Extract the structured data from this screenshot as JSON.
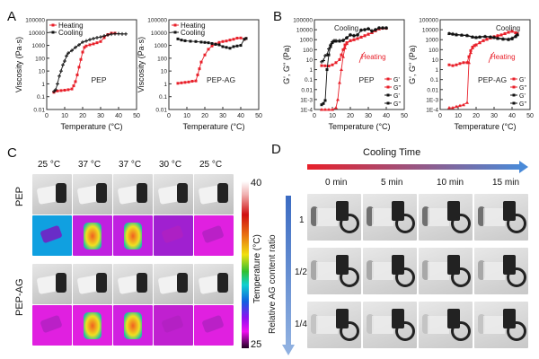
{
  "panels": {
    "A": "A",
    "B": "B",
    "C": "C",
    "D": "D"
  },
  "colors": {
    "heating": "#e8202a",
    "cooling": "#111111",
    "arrow_start": "#e8202a",
    "arrow_end": "#4a8ad8",
    "vertical_arrow": "#3b6bc2"
  },
  "chart_data": [
    {
      "id": "A1",
      "type": "line",
      "title": "",
      "annotation": "PEP",
      "xlabel": "Temperature (°C)",
      "ylabel": "Viscosity (Pa·s)",
      "xlim": [
        0,
        50
      ],
      "ylim": [
        0.01,
        100000
      ],
      "yscale": "log",
      "xticks": [
        "0",
        "10",
        "20",
        "30",
        "40",
        "50"
      ],
      "yticks": [
        "0.01",
        "0.1",
        "1",
        "10",
        "100",
        "1000",
        "10000",
        "100000"
      ],
      "legend": [
        "Heating",
        "Cooling"
      ],
      "legend_position": "top-left",
      "series": [
        {
          "name": "Heating",
          "color": "#e8202a",
          "marker": "square",
          "x": [
            4,
            6,
            8,
            10,
            12,
            14,
            15,
            16,
            17,
            18,
            19,
            20,
            21,
            22,
            24,
            26,
            28,
            30,
            32,
            34,
            36,
            38
          ],
          "y": [
            0.22,
            0.28,
            0.3,
            0.32,
            0.35,
            0.4,
            0.7,
            1.5,
            5,
            20,
            80,
            300,
            700,
            900,
            1100,
            1300,
            1600,
            2000,
            4000,
            7000,
            9000,
            9000
          ]
        },
        {
          "name": "Cooling",
          "color": "#111111",
          "marker": "cross",
          "x": [
            4,
            5,
            6,
            7,
            8,
            9,
            10,
            11,
            12,
            14,
            16,
            18,
            20,
            22,
            24,
            26,
            28,
            30,
            32,
            34,
            36,
            38,
            40,
            42,
            44
          ],
          "y": [
            0.25,
            0.35,
            1,
            4,
            10,
            30,
            60,
            150,
            250,
            400,
            700,
            1100,
            1800,
            2200,
            2800,
            3400,
            4000,
            4500,
            5500,
            6500,
            7500,
            8000,
            8000,
            7800,
            7800
          ]
        }
      ]
    },
    {
      "id": "A2",
      "type": "line",
      "title": "",
      "annotation": "PEP-AG",
      "xlabel": "Temperature (°C)",
      "ylabel": "Viscosity (Pa·s)",
      "xlim": [
        0,
        50
      ],
      "ylim": [
        0.01,
        100000
      ],
      "yscale": "log",
      "xticks": [
        "0",
        "10",
        "20",
        "30",
        "40",
        "50"
      ],
      "yticks": [
        "0.01",
        "0.1",
        "1",
        "10",
        "100",
        "1000",
        "10000",
        "100000"
      ],
      "legend": [
        "Heating",
        "Cooling"
      ],
      "legend_position": "top-left",
      "series": [
        {
          "name": "Heating",
          "color": "#e8202a",
          "marker": "square",
          "x": [
            5,
            7,
            9,
            11,
            13,
            15,
            16,
            17,
            18,
            20,
            22,
            24,
            26,
            28,
            30,
            32,
            34,
            36,
            38,
            40,
            42,
            43
          ],
          "y": [
            1.1,
            1.2,
            1.3,
            1.4,
            1.6,
            1.7,
            5,
            15,
            50,
            180,
            500,
            900,
            1300,
            1700,
            2000,
            2200,
            2600,
            3000,
            3700,
            3800,
            3000,
            3500
          ]
        },
        {
          "name": "Cooling",
          "color": "#111111",
          "marker": "square",
          "x": [
            5,
            7,
            9,
            12,
            15,
            18,
            20,
            22,
            24,
            26,
            28,
            30,
            32,
            34,
            36,
            38,
            40,
            42,
            43
          ],
          "y": [
            3200,
            2600,
            2300,
            2100,
            2000,
            1800,
            1700,
            1600,
            1400,
            1200,
            1100,
            800,
            700,
            600,
            800,
            900,
            1000,
            3000,
            3500
          ]
        }
      ]
    },
    {
      "id": "B1",
      "type": "line",
      "title": "",
      "annotation": "PEP",
      "xlabel": "Temperature (°C)",
      "ylabel": "G', G'' (Pa)",
      "xlim": [
        0,
        50
      ],
      "ylim": [
        0.0001,
        100000
      ],
      "yscale": "log",
      "xticks": [
        "0",
        "10",
        "20",
        "30",
        "40",
        "50"
      ],
      "yticks": [
        "1E-4",
        "1E-3",
        "0.01",
        "0.1",
        "1",
        "10",
        "100",
        "1000",
        "10000",
        "100000"
      ],
      "legend": [
        "G'",
        "G''",
        "G'",
        "G''"
      ],
      "legend_position": "bottom-right",
      "annotations": [
        "Cooling",
        "Heating"
      ],
      "series": [
        {
          "name": "G' heating",
          "color": "#e8202a",
          "marker": "triangle",
          "x": [
            4,
            6,
            8,
            10,
            12,
            13,
            14,
            15,
            16,
            17,
            18,
            20,
            22,
            24,
            26,
            28,
            30,
            32,
            34,
            36,
            38,
            40
          ],
          "y": [
            0.0001,
            0.0001,
            0.0001,
            0.0001,
            0.00015,
            0.001,
            0.05,
            1,
            20,
            150,
            400,
            800,
            1000,
            1300,
            1800,
            2500,
            3500,
            5000,
            8000,
            12000,
            14000,
            14000
          ]
        },
        {
          "name": "G'' heating",
          "color": "#e8202a",
          "marker": "square",
          "x": [
            4,
            6,
            8,
            10,
            12,
            14,
            15,
            16,
            17,
            18,
            20,
            22,
            24,
            26,
            28,
            30,
            32,
            34,
            36,
            38,
            40
          ],
          "y": [
            2.5,
            2.4,
            2.3,
            3,
            5,
            10,
            30,
            100,
            300,
            500,
            800,
            1000,
            1300,
            1800,
            2500,
            3500,
            5000,
            8000,
            12000,
            14000,
            14000
          ]
        },
        {
          "name": "G' cooling",
          "color": "#111111",
          "marker": "square",
          "x": [
            4,
            5,
            6,
            7,
            8,
            9,
            10,
            11,
            12,
            14,
            16,
            18,
            20,
            22,
            24,
            26,
            28,
            30,
            32,
            34,
            36,
            38,
            40
          ],
          "y": [
            0.0003,
            0.0004,
            0.0008,
            1,
            30,
            200,
            500,
            700,
            700,
            700,
            800,
            1500,
            3000,
            2500,
            3000,
            9000,
            10000,
            12000,
            7000,
            10000,
            15000,
            15000,
            15000
          ]
        },
        {
          "name": "G'' cooling",
          "color": "#111111",
          "marker": "cross",
          "x": [
            4,
            5,
            6,
            7,
            8,
            9,
            10,
            11,
            12,
            14,
            16,
            18,
            20,
            22,
            24,
            26,
            28,
            30,
            32,
            34,
            36,
            38,
            40
          ],
          "y": [
            6,
            8,
            25,
            30,
            120,
            300,
            600,
            800,
            800,
            800,
            900,
            1600,
            3000,
            2500,
            3000,
            9000,
            10000,
            13000,
            8000,
            10000,
            15000,
            15000,
            15000
          ]
        }
      ]
    },
    {
      "id": "B2",
      "type": "line",
      "title": "",
      "annotation": "PEP-AG",
      "xlabel": "Temperature (°C)",
      "ylabel": "G', G'' (Pa)",
      "xlim": [
        0,
        50
      ],
      "ylim": [
        0.0001,
        100000
      ],
      "yscale": "log",
      "xticks": [
        "0",
        "10",
        "20",
        "30",
        "40",
        "50"
      ],
      "yticks": [
        "1E-4",
        "1E-3",
        "0.01",
        "0.1",
        "1",
        "10",
        "100",
        "1000",
        "10000",
        "100000"
      ],
      "legend": [
        "G'",
        "G''",
        "G'",
        "G''"
      ],
      "legend_position": "bottom-right",
      "annotations": [
        "Cooling",
        "Heating"
      ],
      "series": [
        {
          "name": "G' heating",
          "color": "#e8202a",
          "marker": "triangle",
          "x": [
            5,
            7,
            9,
            11,
            13,
            15,
            16,
            17,
            18,
            19,
            20,
            22,
            24,
            26,
            28,
            30,
            32,
            34,
            36,
            38,
            40,
            42,
            43
          ],
          "y": [
            0.00015,
            0.00015,
            0.0002,
            0.00025,
            0.0003,
            0.0005,
            5,
            50,
            150,
            250,
            300,
            500,
            800,
            1100,
            1500,
            2000,
            2500,
            3000,
            4000,
            5500,
            7000,
            5000,
            4000
          ]
        },
        {
          "name": "G'' heating",
          "color": "#e8202a",
          "marker": "square",
          "x": [
            5,
            7,
            9,
            11,
            13,
            15,
            16,
            17,
            18,
            19,
            20,
            22,
            24,
            26,
            28,
            30,
            32,
            34,
            36,
            38,
            40,
            42,
            43
          ],
          "y": [
            3,
            2.5,
            3,
            4,
            5,
            5,
            20,
            80,
            180,
            250,
            300,
            500,
            800,
            1100,
            1500,
            2000,
            2500,
            3000,
            4000,
            5500,
            7000,
            5000,
            4000
          ]
        },
        {
          "name": "G' cooling",
          "color": "#111111",
          "marker": "triangle",
          "x": [
            5,
            7,
            9,
            12,
            15,
            18,
            20,
            22,
            25,
            28,
            30,
            32,
            35,
            38,
            40,
            42,
            43
          ],
          "y": [
            4500,
            4000,
            3500,
            3000,
            2800,
            2000,
            1800,
            2000,
            2200,
            2000,
            1800,
            1500,
            1300,
            1200,
            1500,
            2500,
            3500
          ]
        },
        {
          "name": "G'' cooling",
          "color": "#111111",
          "marker": "square",
          "x": [
            5,
            7,
            9,
            12,
            15,
            18,
            20,
            22,
            25,
            28,
            30,
            32,
            35,
            38,
            40,
            42,
            43
          ],
          "y": [
            4000,
            3500,
            3000,
            2800,
            2500,
            1800,
            1600,
            1800,
            2000,
            1800,
            1600,
            1300,
            1100,
            1000,
            1200,
            2000,
            3000
          ]
        }
      ]
    }
  ],
  "panel_c": {
    "temps": [
      "25 °C",
      "37 °C",
      "37 °C",
      "30 °C",
      "25 °C"
    ],
    "row_labels": [
      "PEP",
      "PEP-AG"
    ],
    "colorbar": {
      "max": "40",
      "min": "25",
      "label": "Temperature (°C)"
    }
  },
  "panel_d": {
    "title": "Cooling Time",
    "times": [
      "0 min",
      "5 min",
      "10 min",
      "15 min"
    ],
    "axis_label": "Relative AG content ratio",
    "ratios": [
      "1",
      "1/2",
      "1/4"
    ]
  }
}
